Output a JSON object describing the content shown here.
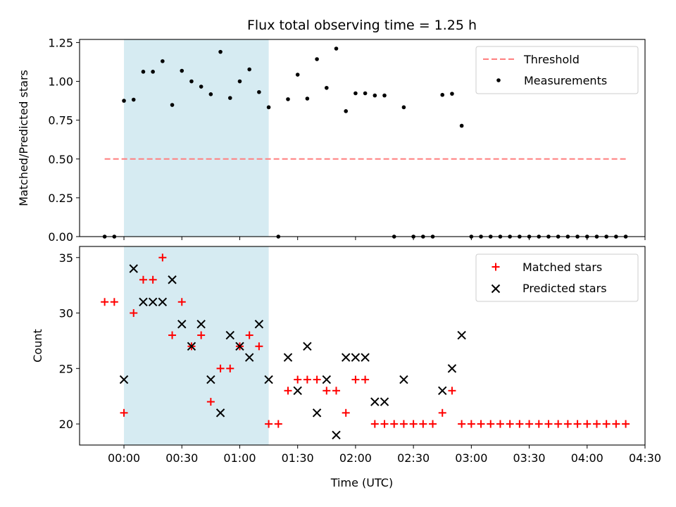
{
  "colors": {
    "shade": "#add8e6",
    "threshold": "#ff7f7f",
    "matched": "#ff0000",
    "predicted": "#000000",
    "measurement": "#000000"
  },
  "chart_data": [
    {
      "type": "scatter",
      "title": "Flux total observing time = 1.25 h",
      "xlabel": "",
      "ylabel": "Matched/Predicted stars",
      "xlim": [
        "-00:23",
        "04:30"
      ],
      "ylim": [
        0,
        1.27
      ],
      "yticks": [
        "0.00",
        "0.25",
        "0.50",
        "0.75",
        "1.00",
        "1.25"
      ],
      "shaded_span": [
        "00:00",
        "01:15"
      ],
      "legend_position": "upper right",
      "legend": [
        "Threshold",
        "Measurements"
      ],
      "threshold": {
        "name": "Threshold",
        "y": 0.5,
        "x_range": [
          "-00:10",
          "04:20"
        ]
      },
      "series": [
        {
          "name": "Measurements",
          "x": [
            "-00:10",
            "-00:05",
            "00:00",
            "00:05",
            "00:10",
            "00:15",
            "00:20",
            "00:25",
            "00:30",
            "00:35",
            "00:40",
            "00:45",
            "00:50",
            "00:55",
            "01:00",
            "01:05",
            "01:10",
            "01:15",
            "01:20",
            "01:25",
            "01:30",
            "01:35",
            "01:40",
            "01:45",
            "01:50",
            "01:55",
            "02:00",
            "02:05",
            "02:10",
            "02:15",
            "02:20",
            "02:25",
            "02:30",
            "02:35",
            "02:40",
            "02:45",
            "02:50",
            "02:55",
            "03:00",
            "03:05",
            "03:10",
            "03:15",
            "03:20",
            "03:25",
            "03:30",
            "03:35",
            "03:40",
            "03:45",
            "03:50",
            "03:55",
            "04:00",
            "04:05",
            "04:10",
            "04:15",
            "04:20"
          ],
          "y": [
            0,
            0,
            0.875,
            0.882,
            1.062,
            1.062,
            1.13,
            0.848,
            1.068,
            1.0,
            0.966,
            0.917,
            1.19,
            0.893,
            1.0,
            1.077,
            0.931,
            0.833,
            0,
            0.885,
            1.043,
            0.889,
            1.143,
            0.958,
            1.211,
            0.808,
            0.923,
            0.923,
            0.909,
            0.909,
            0,
            0.833,
            0,
            0,
            0,
            0.913,
            0.92,
            0.714,
            0,
            0,
            0,
            0,
            0,
            0,
            0,
            0,
            0,
            0,
            0,
            0,
            0,
            0,
            0,
            0,
            0
          ]
        }
      ]
    },
    {
      "type": "scatter",
      "title": "",
      "xlabel": "Time (UTC)",
      "ylabel": "Count",
      "xlim": [
        "-00:23",
        "04:30"
      ],
      "ylim": [
        18.1,
        36.0
      ],
      "yticks": [
        "20",
        "25",
        "30",
        "35"
      ],
      "xticks": [
        "00:00",
        "00:30",
        "01:00",
        "01:30",
        "02:00",
        "02:30",
        "03:00",
        "03:30",
        "04:00",
        "04:30"
      ],
      "shaded_span": [
        "00:00",
        "01:15"
      ],
      "legend_position": "upper right",
      "legend": [
        "Matched stars",
        "Predicted stars"
      ],
      "series": [
        {
          "name": "Matched stars",
          "x": [
            "-00:10",
            "-00:05",
            "00:00",
            "00:05",
            "00:10",
            "00:15",
            "00:20",
            "00:25",
            "00:30",
            "00:35",
            "00:40",
            "00:45",
            "00:50",
            "00:55",
            "01:00",
            "01:05",
            "01:10",
            "01:15",
            "01:20",
            "01:25",
            "01:30",
            "01:35",
            "01:40",
            "01:45",
            "01:50",
            "01:55",
            "02:00",
            "02:05",
            "02:10",
            "02:15",
            "02:20",
            "02:25",
            "02:30",
            "02:35",
            "02:40",
            "02:45",
            "02:50",
            "02:55",
            "03:00",
            "03:05",
            "03:10",
            "03:15",
            "03:20",
            "03:25",
            "03:30",
            "03:35",
            "03:40",
            "03:45",
            "03:50",
            "03:55",
            "04:00",
            "04:05",
            "04:10",
            "04:15",
            "04:20"
          ],
          "y": [
            31,
            31,
            21,
            30,
            33,
            33,
            35,
            28,
            31,
            27,
            28,
            22,
            25,
            25,
            27,
            28,
            27,
            20,
            20,
            23,
            24,
            24,
            24,
            23,
            23,
            21,
            24,
            24,
            20,
            20,
            20,
            20,
            20,
            20,
            20,
            21,
            23,
            20,
            20,
            20,
            20,
            20,
            20,
            20,
            20,
            20,
            20,
            20,
            20,
            20,
            20,
            20,
            20,
            20,
            20
          ]
        },
        {
          "name": "Predicted stars",
          "x": [
            "00:00",
            "00:05",
            "00:10",
            "00:15",
            "00:20",
            "00:25",
            "00:30",
            "00:35",
            "00:40",
            "00:45",
            "00:50",
            "00:55",
            "01:00",
            "01:05",
            "01:10",
            "01:15",
            "01:25",
            "01:30",
            "01:35",
            "01:40",
            "01:45",
            "01:50",
            "01:55",
            "02:00",
            "02:05",
            "02:10",
            "02:15",
            "02:25",
            "02:45",
            "02:50",
            "02:55"
          ],
          "y": [
            24,
            34,
            31,
            31,
            31,
            33,
            29,
            27,
            29,
            24,
            21,
            28,
            27,
            26,
            29,
            24,
            26,
            23,
            27,
            21,
            24,
            19,
            26,
            26,
            26,
            22,
            22,
            24,
            23,
            25,
            28
          ]
        }
      ]
    }
  ]
}
